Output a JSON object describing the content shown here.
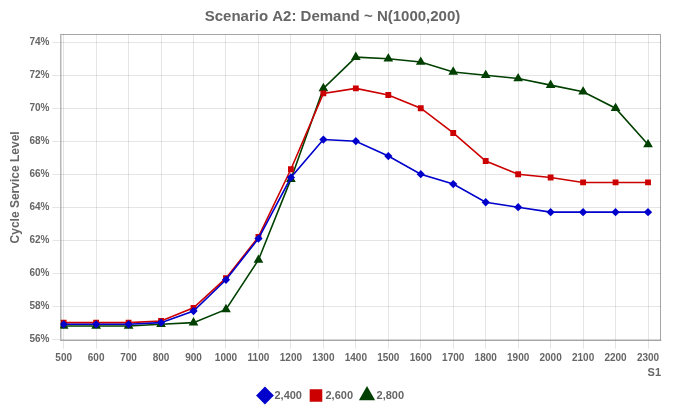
{
  "chart_data": {
    "type": "line",
    "title": "Scenario A2: Demand ~ N(1000,200)",
    "xlabel": "S1",
    "ylabel": "Cycle Service Level",
    "x": [
      500,
      600,
      700,
      800,
      900,
      1000,
      1100,
      1200,
      1300,
      1400,
      1500,
      1600,
      1700,
      1800,
      1900,
      2000,
      2100,
      2200,
      2300
    ],
    "series": [
      {
        "name": "2,400",
        "color": "#0000CC",
        "marker": "diamond",
        "values": [
          0.569,
          0.569,
          0.569,
          0.57,
          0.577,
          0.596,
          0.621,
          0.658,
          0.681,
          0.68,
          0.671,
          0.66,
          0.654,
          0.643,
          0.64,
          0.637,
          0.637,
          0.637,
          0.637
        ]
      },
      {
        "name": "2,600",
        "color": "#CC0000",
        "marker": "square",
        "values": [
          0.57,
          0.57,
          0.57,
          0.571,
          0.579,
          0.597,
          0.622,
          0.663,
          0.709,
          0.712,
          0.708,
          0.7,
          0.685,
          0.668,
          0.66,
          0.658,
          0.655,
          0.655,
          0.655
        ]
      },
      {
        "name": "2,800",
        "color": "#004000",
        "marker": "triangle",
        "values": [
          0.568,
          0.568,
          0.568,
          0.569,
          0.57,
          0.578,
          0.608,
          0.657,
          0.712,
          0.731,
          0.73,
          0.728,
          0.722,
          0.72,
          0.718,
          0.714,
          0.71,
          0.7,
          0.678
        ]
      }
    ],
    "xlim": [
      490,
      2340
    ],
    "xticks": [
      500,
      600,
      700,
      800,
      900,
      1000,
      1100,
      1200,
      1300,
      1400,
      1500,
      1600,
      1700,
      1800,
      1900,
      2000,
      2100,
      2200,
      2300
    ],
    "ylim": [
      0.559,
      0.745
    ],
    "yticks": [
      {
        "value": 0.56,
        "label": "56%"
      },
      {
        "value": 0.58,
        "label": "58%"
      },
      {
        "value": 0.6,
        "label": "60%"
      },
      {
        "value": 0.62,
        "label": "62%"
      },
      {
        "value": 0.64,
        "label": "64%"
      },
      {
        "value": 0.66,
        "label": "66%"
      },
      {
        "value": 0.68,
        "label": "68%"
      },
      {
        "value": 0.7,
        "label": "70%"
      },
      {
        "value": 0.72,
        "label": "72%"
      },
      {
        "value": 0.74,
        "label": "74%"
      }
    ],
    "grid": true,
    "legend": "bottom"
  }
}
